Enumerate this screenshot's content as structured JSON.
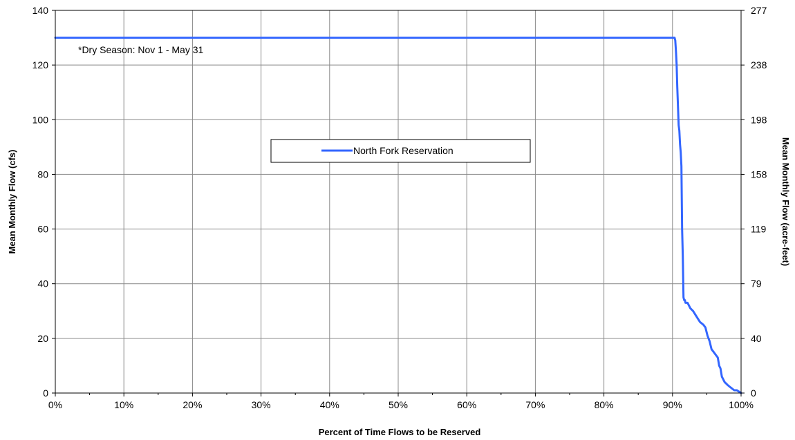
{
  "chart_data": {
    "type": "line",
    "title": "",
    "xlabel": "Percent of Time Flows to be Reserved",
    "ylabel": "Mean Monthly Flow (cfs)",
    "y2label": "Mean Monthly Flow (acre-feet)",
    "annotation": "*Dry Season: Nov 1 - May 31",
    "xlim": [
      0,
      100
    ],
    "ylim": [
      0,
      140
    ],
    "x_ticks": [
      0,
      10,
      20,
      30,
      40,
      50,
      60,
      70,
      80,
      90,
      100
    ],
    "x_tick_labels": [
      "0%",
      "10%",
      "20%",
      "30%",
      "40%",
      "50%",
      "60%",
      "70%",
      "80%",
      "90%",
      "100%"
    ],
    "y_ticks": [
      0,
      20,
      40,
      60,
      80,
      100,
      120,
      140
    ],
    "y_tick_labels": [
      "0",
      "20",
      "40",
      "60",
      "80",
      "100",
      "120",
      "140"
    ],
    "y2_tick_labels": [
      "0",
      "40",
      "79",
      "119",
      "158",
      "198",
      "238",
      "277"
    ],
    "grid": true,
    "legend": {
      "placement": "center",
      "entries": [
        "North Fork Reservation"
      ]
    },
    "series": [
      {
        "name": "North Fork Reservation",
        "color": "#3366ff",
        "x": [
          0,
          90.0,
          90.3,
          90.4,
          90.5,
          90.6,
          90.7,
          90.8,
          90.9,
          91.0,
          91.1,
          91.2,
          91.3,
          91.4,
          91.5,
          91.6,
          91.7,
          91.8,
          91.9,
          92.2,
          92.6,
          93.0,
          93.5,
          94.0,
          94.5,
          94.8,
          95.1,
          95.4,
          95.7,
          96.0,
          96.3,
          96.6,
          96.8,
          97.0,
          97.2,
          97.4,
          97.6,
          97.8,
          98.0,
          98.5,
          99.0,
          99.4,
          99.7,
          100.0
        ],
        "y": [
          130,
          130,
          130,
          129,
          125,
          120,
          112,
          105,
          98,
          96,
          91,
          88,
          83,
          60,
          50,
          35,
          34,
          34,
          33,
          33,
          31,
          30,
          28,
          26,
          25,
          24,
          21,
          19,
          16,
          15,
          14,
          13,
          10,
          9,
          6,
          5,
          4,
          3.5,
          3,
          2,
          1,
          1,
          0.5,
          0
        ]
      }
    ]
  }
}
